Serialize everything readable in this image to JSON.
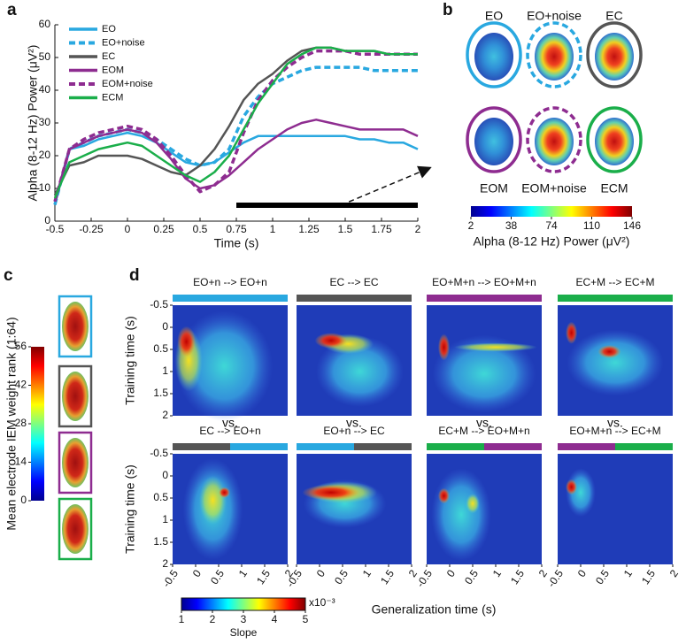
{
  "chart_data": [
    {
      "type": "line",
      "panel_label": "a",
      "xlabel": "Time (s)",
      "ylabel": "Alpha (8-12 Hz) Power (μV²)",
      "xlim": [
        -0.5,
        2
      ],
      "ylim": [
        0,
        60
      ],
      "xticks": [
        -0.5,
        -0.25,
        0,
        0.25,
        0.5,
        0.75,
        1,
        1.25,
        1.5,
        1.75,
        2
      ],
      "yticks": [
        0,
        10,
        20,
        30,
        40,
        50,
        60
      ],
      "x": [
        -0.5,
        -0.4,
        -0.3,
        -0.2,
        -0.1,
        0,
        0.1,
        0.2,
        0.3,
        0.4,
        0.5,
        0.6,
        0.7,
        0.8,
        0.9,
        1,
        1.1,
        1.2,
        1.3,
        1.4,
        1.5,
        1.6,
        1.7,
        1.8,
        1.9,
        2
      ],
      "series": [
        {
          "name": "EO",
          "color": "#29a8e0",
          "dashed": false,
          "values": [
            5,
            22,
            23,
            25,
            26,
            27,
            26,
            24,
            21,
            18,
            17,
            18,
            21,
            24,
            26,
            26,
            26,
            26,
            26,
            26,
            26,
            25,
            25,
            24,
            24,
            22
          ]
        },
        {
          "name": "EO+noise",
          "color": "#29a8e0",
          "dashed": true,
          "values": [
            5,
            22,
            24,
            26,
            27,
            28,
            27,
            25,
            22,
            19,
            17,
            18,
            22,
            32,
            38,
            42,
            44,
            46,
            47,
            47,
            47,
            47,
            46,
            46,
            46,
            46
          ]
        },
        {
          "name": "EC",
          "color": "#555555",
          "dashed": false,
          "values": [
            8,
            17,
            18,
            20,
            20,
            20,
            19,
            17,
            15,
            14,
            17,
            22,
            29,
            37,
            42,
            45,
            49,
            52,
            53,
            53,
            52,
            52,
            52,
            51,
            51,
            51
          ]
        },
        {
          "name": "EOM",
          "color": "#8e2c90",
          "dashed": false,
          "values": [
            6,
            22,
            24,
            26,
            27,
            28,
            27,
            24,
            19,
            13,
            10,
            11,
            14,
            18,
            22,
            25,
            28,
            30,
            31,
            30,
            29,
            28,
            28,
            28,
            28,
            26
          ]
        },
        {
          "name": "EOM+noise",
          "color": "#8e2c90",
          "dashed": true,
          "values": [
            6,
            22,
            25,
            27,
            28,
            29,
            28,
            25,
            20,
            14,
            9,
            11,
            15,
            27,
            37,
            43,
            47,
            50,
            52,
            52,
            52,
            51,
            51,
            51,
            51,
            51
          ]
        },
        {
          "name": "ECM",
          "color": "#1aae4a",
          "dashed": false,
          "values": [
            7,
            18,
            20,
            22,
            23,
            24,
            23,
            20,
            17,
            14,
            12,
            15,
            20,
            28,
            36,
            42,
            48,
            51,
            53,
            53,
            52,
            52,
            52,
            51,
            51,
            51
          ]
        }
      ],
      "significance": [
        0.75,
        2
      ]
    },
    {
      "type": "topomap",
      "panel_label": "b",
      "labels": [
        "EO",
        "EO+noise",
        "EC",
        "EOM",
        "EOM+noise",
        "ECM"
      ],
      "outline_colors": [
        "#29a8e0",
        "#29a8e0",
        "#555555",
        "#8e2c90",
        "#8e2c90",
        "#1aae4a"
      ],
      "dashed": [
        false,
        true,
        false,
        false,
        true,
        false
      ],
      "colorbar_label": "Alpha (8-12 Hz) Power (μV²)",
      "clim": [
        2,
        146
      ],
      "cticks": [
        2,
        38,
        74,
        110,
        146
      ]
    },
    {
      "type": "rank",
      "panel_label": "c",
      "colorbar_label": "Mean electrode IEM weight rank (1:64)",
      "clim": [
        0,
        56
      ],
      "cticks": [
        0,
        14,
        28,
        42,
        56
      ],
      "box_colors": [
        "#29a8e0",
        "#555555",
        "#8e2c90",
        "#1aae4a"
      ]
    },
    {
      "type": "heatmap",
      "panel_label": "d",
      "panels": [
        {
          "title": "EO+n --> EO+n",
          "colors": [
            "#29a8e0"
          ]
        },
        {
          "title": "EC --> EC",
          "colors": [
            "#555555"
          ]
        },
        {
          "title": "EO+M+n --> EO+M+n",
          "colors": [
            "#8e2c90"
          ]
        },
        {
          "title": "EC+M --> EC+M",
          "colors": [
            "#1aae4a"
          ]
        },
        {
          "title": "EC --> EO+n",
          "colors": [
            "#555555",
            "#29a8e0"
          ]
        },
        {
          "title": "EO+n --> EC",
          "colors": [
            "#29a8e0",
            "#555555"
          ]
        },
        {
          "title": "EC+M --> EO+M+n",
          "colors": [
            "#1aae4a",
            "#8e2c90"
          ]
        },
        {
          "title": "EO+M+n --> EC+M",
          "colors": [
            "#8e2c90",
            "#1aae4a"
          ]
        }
      ],
      "separator": "vs.",
      "xlabel": "Generalization time (s)",
      "ylabel": "Training time (s)",
      "xlim": [
        -0.5,
        2
      ],
      "ylim": [
        -0.5,
        2
      ],
      "xticks": [
        -0.5,
        0,
        0.5,
        1,
        1.5,
        2
      ],
      "yticks": [
        -0.5,
        0,
        0.5,
        1,
        1.5,
        2
      ],
      "colorbar_label": "Slope",
      "colorbar_scale": "x10⁻³",
      "clim": [
        1,
        5
      ],
      "cticks": [
        1,
        2,
        3,
        4,
        5
      ]
    }
  ]
}
